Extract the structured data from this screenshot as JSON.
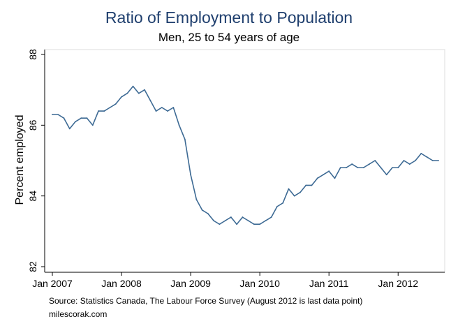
{
  "chart_data": {
    "type": "line",
    "title": "Ratio of Employment to Population",
    "subtitle": "Men, 25 to 54 years of age",
    "xlabel": "",
    "ylabel": "Percent employed",
    "ylim": [
      82,
      88
    ],
    "yticks": [
      82,
      84,
      86,
      88
    ],
    "xtick_labels": [
      "Jan 2007",
      "Jan 2008",
      "Jan 2009",
      "Jan 2010",
      "Jan 2011",
      "Jan 2012"
    ],
    "xlim": [
      "2007-01",
      "2012-08"
    ],
    "grid": false,
    "series": [
      {
        "color": "#3d6a94",
        "x": [
          "2007-01",
          "2007-02",
          "2007-03",
          "2007-04",
          "2007-05",
          "2007-06",
          "2007-07",
          "2007-08",
          "2007-09",
          "2007-10",
          "2007-11",
          "2007-12",
          "2008-01",
          "2008-02",
          "2008-03",
          "2008-04",
          "2008-05",
          "2008-06",
          "2008-07",
          "2008-08",
          "2008-09",
          "2008-10",
          "2008-11",
          "2008-12",
          "2009-01",
          "2009-02",
          "2009-03",
          "2009-04",
          "2009-05",
          "2009-06",
          "2009-07",
          "2009-08",
          "2009-09",
          "2009-10",
          "2009-11",
          "2009-12",
          "2010-01",
          "2010-02",
          "2010-03",
          "2010-04",
          "2010-05",
          "2010-06",
          "2010-07",
          "2010-08",
          "2010-09",
          "2010-10",
          "2010-11",
          "2010-12",
          "2011-01",
          "2011-02",
          "2011-03",
          "2011-04",
          "2011-05",
          "2011-06",
          "2011-07",
          "2011-08",
          "2011-09",
          "2011-10",
          "2011-11",
          "2011-12",
          "2012-01",
          "2012-02",
          "2012-03",
          "2012-04",
          "2012-05",
          "2012-06",
          "2012-07",
          "2012-08"
        ],
        "values": [
          86.3,
          86.3,
          86.2,
          85.9,
          86.1,
          86.2,
          86.2,
          86.0,
          86.4,
          86.4,
          86.5,
          86.6,
          86.8,
          86.9,
          87.1,
          86.9,
          87.0,
          86.7,
          86.4,
          86.5,
          86.4,
          86.5,
          86.0,
          85.6,
          84.6,
          83.9,
          83.6,
          83.5,
          83.3,
          83.2,
          83.3,
          83.4,
          83.2,
          83.4,
          83.3,
          83.2,
          83.2,
          83.3,
          83.4,
          83.7,
          83.8,
          84.2,
          84.0,
          84.1,
          84.3,
          84.3,
          84.5,
          84.6,
          84.7,
          84.5,
          84.8,
          84.8,
          84.9,
          84.8,
          84.8,
          84.9,
          85.0,
          84.8,
          84.6,
          84.8,
          84.8,
          85.0,
          84.9,
          85.0,
          85.2,
          85.1,
          85.0,
          85.0
        ]
      }
    ]
  },
  "footer": {
    "source": "Source: Statistics Canada, The Labour Force Survey (August 2012 is last data point)",
    "credit": "milescorak.com"
  }
}
